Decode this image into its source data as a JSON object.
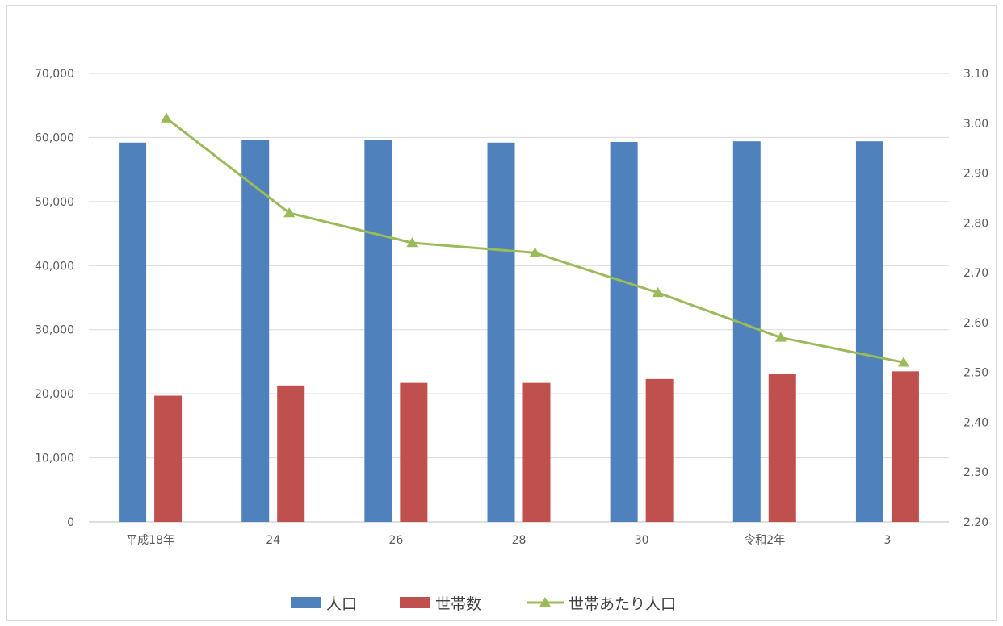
{
  "chart_data": {
    "type": "bar",
    "categories": [
      "平成18年",
      "24",
      "26",
      "28",
      "30",
      "令和2年",
      "3"
    ],
    "series": [
      {
        "name": "人口",
        "type": "bar",
        "axis": "left",
        "color": "#4f81bd",
        "values": [
          59200,
          59600,
          59600,
          59200,
          59300,
          59400,
          59400
        ]
      },
      {
        "name": "世帯数",
        "type": "bar",
        "axis": "left",
        "color": "#c0504d",
        "values": [
          19700,
          21300,
          21700,
          21700,
          22300,
          23100,
          23500
        ]
      },
      {
        "name": "世帯あたり人口",
        "type": "line",
        "axis": "right",
        "color": "#9bbb59",
        "marker": "triangle",
        "values": [
          3.01,
          2.82,
          2.76,
          2.74,
          2.66,
          2.57,
          2.52
        ]
      }
    ],
    "y_left": {
      "min": 0,
      "max": 70000,
      "ticks": [
        "0",
        "10,000",
        "20,000",
        "30,000",
        "40,000",
        "50,000",
        "60,000",
        "70,000"
      ]
    },
    "y_right": {
      "min": 2.2,
      "max": 3.1,
      "ticks": [
        "2.20",
        "2.30",
        "2.40",
        "2.50",
        "2.60",
        "2.70",
        "2.80",
        "2.90",
        "3.00",
        "3.10"
      ]
    },
    "grid": true,
    "legend_position": "bottom"
  }
}
